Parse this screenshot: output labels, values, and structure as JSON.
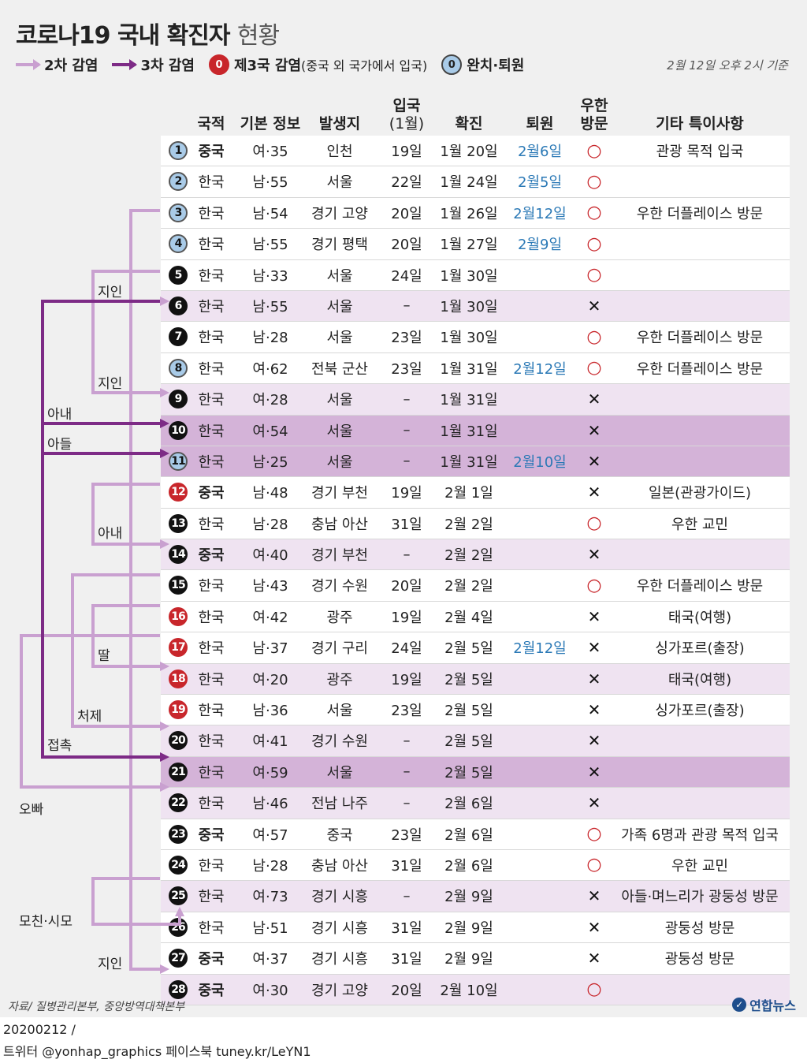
{
  "title": {
    "main": "코로나19 국내 확진자",
    "sub": "현황"
  },
  "legend": {
    "second": "2차 감염",
    "third": "3차 감염",
    "third_country_badge": "0",
    "third_country": "제3국 감염",
    "third_country_note": "(중국 외 국가에서 입국)",
    "recovered_badge": "0",
    "recovered": "완치·퇴원"
  },
  "date_ref": "2월 12일 오후 2시 기준",
  "headers": {
    "nationality": "국적",
    "basic_info": "기본 정보",
    "origin": "발생지",
    "entry": "입국",
    "entry_sub": "(1월)",
    "confirmed": "확진",
    "discharge": "퇴원",
    "wuhan": "우한",
    "wuhan_sub": "방문",
    "notes": "기타 특이사항"
  },
  "colors": {
    "second_line": "#c9a0d0",
    "third_line": "#7d2b86",
    "third_country": "#c8262b",
    "recovered": "#a9cbe8"
  },
  "rows": [
    {
      "no": "1",
      "badge": "blue",
      "nat": "중국",
      "info": "여·35",
      "place": "인천",
      "entry": "19일",
      "conf": "1월 20일",
      "disc": "2월6일",
      "wuhan": "○",
      "note": "관광 목적 입국",
      "bg": "white"
    },
    {
      "no": "2",
      "badge": "blue",
      "nat": "한국",
      "info": "남·55",
      "place": "서울",
      "entry": "22일",
      "conf": "1월 24일",
      "disc": "2월5일",
      "wuhan": "○",
      "note": "",
      "bg": "white"
    },
    {
      "no": "3",
      "badge": "blue",
      "nat": "한국",
      "info": "남·54",
      "place": "경기 고양",
      "entry": "20일",
      "conf": "1월 26일",
      "disc": "2월12일",
      "wuhan": "○",
      "note": "우한 더플레이스 방문",
      "bg": "white"
    },
    {
      "no": "4",
      "badge": "blue",
      "nat": "한국",
      "info": "남·55",
      "place": "경기 평택",
      "entry": "20일",
      "conf": "1월 27일",
      "disc": "2월9일",
      "wuhan": "○",
      "note": "",
      "bg": "white"
    },
    {
      "no": "5",
      "badge": "black",
      "nat": "한국",
      "info": "남·33",
      "place": "서울",
      "entry": "24일",
      "conf": "1월 30일",
      "disc": "",
      "wuhan": "○",
      "note": "",
      "bg": "white"
    },
    {
      "no": "6",
      "badge": "black",
      "nat": "한국",
      "info": "남·55",
      "place": "서울",
      "entry": "–",
      "conf": "1월 30일",
      "disc": "",
      "wuhan": "✕",
      "note": "",
      "bg": "lp"
    },
    {
      "no": "7",
      "badge": "black",
      "nat": "한국",
      "info": "남·28",
      "place": "서울",
      "entry": "23일",
      "conf": "1월 30일",
      "disc": "",
      "wuhan": "○",
      "note": "우한 더플레이스 방문",
      "bg": "white"
    },
    {
      "no": "8",
      "badge": "blue",
      "nat": "한국",
      "info": "여·62",
      "place": "전북 군산",
      "entry": "23일",
      "conf": "1월 31일",
      "disc": "2월12일",
      "wuhan": "○",
      "note": "우한 더플레이스 방문",
      "bg": "white"
    },
    {
      "no": "9",
      "badge": "black",
      "nat": "한국",
      "info": "여·28",
      "place": "서울",
      "entry": "–",
      "conf": "1월 31일",
      "disc": "",
      "wuhan": "✕",
      "note": "",
      "bg": "lp"
    },
    {
      "no": "10",
      "badge": "black",
      "nat": "한국",
      "info": "여·54",
      "place": "서울",
      "entry": "–",
      "conf": "1월 31일",
      "disc": "",
      "wuhan": "✕",
      "note": "",
      "bg": "dp"
    },
    {
      "no": "11",
      "badge": "blue",
      "nat": "한국",
      "info": "남·25",
      "place": "서울",
      "entry": "–",
      "conf": "1월 31일",
      "disc": "2월10일",
      "wuhan": "✕",
      "note": "",
      "bg": "dp"
    },
    {
      "no": "12",
      "badge": "red",
      "nat": "중국",
      "info": "남·48",
      "place": "경기 부천",
      "entry": "19일",
      "conf": "2월 1일",
      "disc": "",
      "wuhan": "✕",
      "note": "일본(관광가이드)",
      "bg": "white"
    },
    {
      "no": "13",
      "badge": "black",
      "nat": "한국",
      "info": "남·28",
      "place": "충남 아산",
      "entry": "31일",
      "conf": "2월 2일",
      "disc": "",
      "wuhan": "○",
      "note": "우한 교민",
      "bg": "white"
    },
    {
      "no": "14",
      "badge": "black",
      "nat": "중국",
      "info": "여·40",
      "place": "경기 부천",
      "entry": "–",
      "conf": "2월 2일",
      "disc": "",
      "wuhan": "✕",
      "note": "",
      "bg": "lp"
    },
    {
      "no": "15",
      "badge": "black",
      "nat": "한국",
      "info": "남·43",
      "place": "경기 수원",
      "entry": "20일",
      "conf": "2월 2일",
      "disc": "",
      "wuhan": "○",
      "note": "우한 더플레이스 방문",
      "bg": "white"
    },
    {
      "no": "16",
      "badge": "red",
      "nat": "한국",
      "info": "여·42",
      "place": "광주",
      "entry": "19일",
      "conf": "2월 4일",
      "disc": "",
      "wuhan": "✕",
      "note": "태국(여행)",
      "bg": "white"
    },
    {
      "no": "17",
      "badge": "red",
      "nat": "한국",
      "info": "남·37",
      "place": "경기 구리",
      "entry": "24일",
      "conf": "2월 5일",
      "disc": "2월12일",
      "wuhan": "✕",
      "note": "싱가포르(출장)",
      "bg": "white"
    },
    {
      "no": "18",
      "badge": "red",
      "nat": "한국",
      "info": "여·20",
      "place": "광주",
      "entry": "19일",
      "conf": "2월 5일",
      "disc": "",
      "wuhan": "✕",
      "note": "태국(여행)",
      "bg": "lp"
    },
    {
      "no": "19",
      "badge": "red",
      "nat": "한국",
      "info": "남·36",
      "place": "서울",
      "entry": "23일",
      "conf": "2월 5일",
      "disc": "",
      "wuhan": "✕",
      "note": "싱가포르(출장)",
      "bg": "white"
    },
    {
      "no": "20",
      "badge": "black",
      "nat": "한국",
      "info": "여·41",
      "place": "경기 수원",
      "entry": "–",
      "conf": "2월 5일",
      "disc": "",
      "wuhan": "✕",
      "note": "",
      "bg": "lp"
    },
    {
      "no": "21",
      "badge": "black",
      "nat": "한국",
      "info": "여·59",
      "place": "서울",
      "entry": "–",
      "conf": "2월 5일",
      "disc": "",
      "wuhan": "✕",
      "note": "",
      "bg": "dp"
    },
    {
      "no": "22",
      "badge": "black",
      "nat": "한국",
      "info": "남·46",
      "place": "전남 나주",
      "entry": "–",
      "conf": "2월 6일",
      "disc": "",
      "wuhan": "✕",
      "note": "",
      "bg": "lp"
    },
    {
      "no": "23",
      "badge": "black",
      "nat": "중국",
      "info": "여·57",
      "place": "중국",
      "entry": "23일",
      "conf": "2월 6일",
      "disc": "",
      "wuhan": "○",
      "note": "가족 6명과 관광 목적 입국",
      "bg": "white"
    },
    {
      "no": "24",
      "badge": "black",
      "nat": "한국",
      "info": "남·28",
      "place": "충남 아산",
      "entry": "31일",
      "conf": "2월 6일",
      "disc": "",
      "wuhan": "○",
      "note": "우한 교민",
      "bg": "white"
    },
    {
      "no": "25",
      "badge": "black",
      "nat": "한국",
      "info": "여·73",
      "place": "경기 시흥",
      "entry": "–",
      "conf": "2월 9일",
      "disc": "",
      "wuhan": "✕",
      "note": "아들·며느리가 광둥성 방문",
      "bg": "lp"
    },
    {
      "no": "26",
      "badge": "black",
      "nat": "한국",
      "info": "남·51",
      "place": "경기 시흥",
      "entry": "31일",
      "conf": "2월 9일",
      "disc": "",
      "wuhan": "✕",
      "note": "광둥성 방문",
      "bg": "white"
    },
    {
      "no": "27",
      "badge": "black",
      "nat": "중국",
      "info": "여·37",
      "place": "경기 시흥",
      "entry": "31일",
      "conf": "2월 9일",
      "disc": "",
      "wuhan": "✕",
      "note": "광둥성 방문",
      "bg": "white"
    },
    {
      "no": "28",
      "badge": "black",
      "nat": "중국",
      "info": "여·30",
      "place": "경기 고양",
      "entry": "20일",
      "conf": "2월 10일",
      "disc": "",
      "wuhan": "○",
      "note": "",
      "bg": "lp"
    }
  ],
  "relations": {
    "acq1": "지인",
    "acq2": "지인",
    "wife1": "아내",
    "son": "아들",
    "wife2": "아내",
    "daughter": "딸",
    "sister_in_law": "처제",
    "contact": "접촉",
    "brother": "오빠",
    "mother": "모친·시모",
    "acq3": "지인"
  },
  "source": "자료/ 질병관리본부, 중앙방역대책본부",
  "logo": "연합뉴스",
  "footer": {
    "line1": "20200212 /",
    "line2": "트위터 @yonhap_graphics  페이스북 tuney.kr/LeYN1"
  }
}
